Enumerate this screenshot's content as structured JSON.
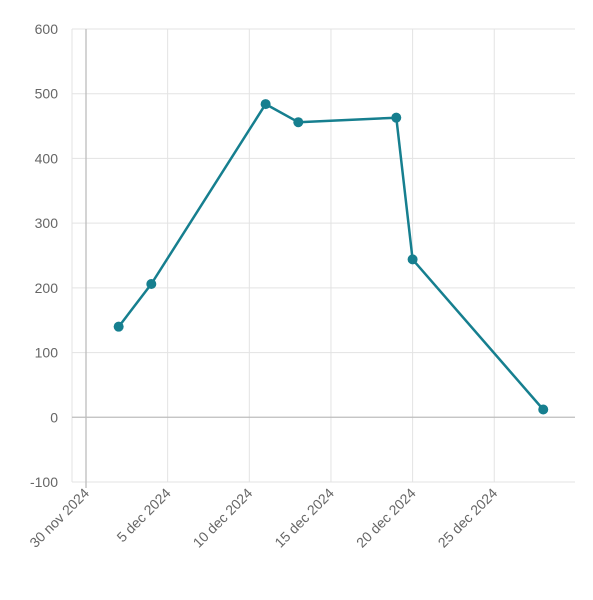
{
  "chart_data": {
    "type": "line",
    "title": "",
    "xlabel": "",
    "ylabel": "",
    "x_axis": {
      "type": "date",
      "min": "2024-11-30",
      "max": "2024-12-30",
      "ticks": [
        {
          "date": "2024-11-30",
          "label": "30 nov 2024"
        },
        {
          "date": "2024-12-05",
          "label": "5 dec 2024"
        },
        {
          "date": "2024-12-10",
          "label": "10 dec 2024"
        },
        {
          "date": "2024-12-15",
          "label": "15 dec 2024"
        },
        {
          "date": "2024-12-20",
          "label": "20 dec 2024"
        },
        {
          "date": "2024-12-25",
          "label": "25 dec 2024"
        }
      ]
    },
    "y_axis": {
      "min": -100,
      "max": 600,
      "ticks": [
        {
          "value": -100,
          "label": "-100"
        },
        {
          "value": 0,
          "label": "0"
        },
        {
          "value": 100,
          "label": "100"
        },
        {
          "value": 200,
          "label": "200"
        },
        {
          "value": 300,
          "label": "300"
        },
        {
          "value": 400,
          "label": "400"
        },
        {
          "value": 500,
          "label": "500"
        },
        {
          "value": 600,
          "label": "600"
        }
      ]
    },
    "grid": true,
    "legend": "none",
    "series": [
      {
        "color": "#167f8f",
        "points": [
          {
            "x": "2024-12-02",
            "y": 140
          },
          {
            "x": "2024-12-04",
            "y": 206
          },
          {
            "x": "2024-12-11",
            "y": 484
          },
          {
            "x": "2024-12-13",
            "y": 456
          },
          {
            "x": "2024-12-19",
            "y": 463
          },
          {
            "x": "2024-12-20",
            "y": 244
          },
          {
            "x": "2024-12-28",
            "y": 12
          }
        ]
      }
    ]
  }
}
